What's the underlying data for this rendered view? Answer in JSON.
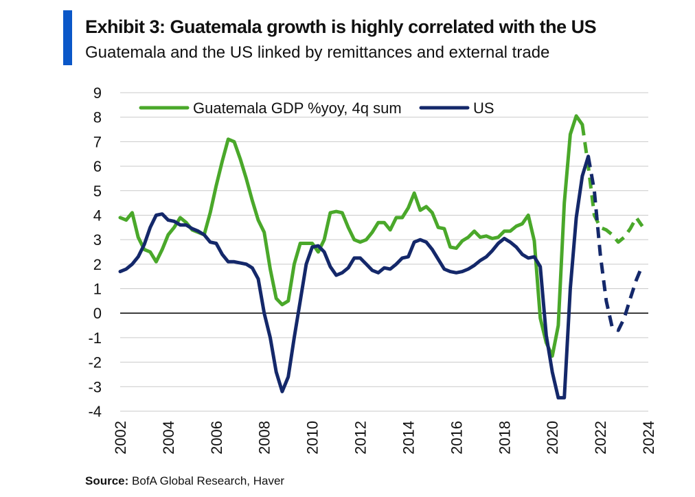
{
  "header": {
    "title": "Exhibit 3: Guatemala growth is highly correlated with the US",
    "subtitle": "Guatemala and the US linked by remittances and external trade"
  },
  "footer": {
    "source_label": "Source:",
    "source_text": "BofA Global Research, Haver"
  },
  "colors": {
    "accent": "#0a57c8",
    "guatemala": "#4aa82a",
    "us": "#14286a",
    "grid": "#c9c9c9",
    "zero_line": "#111111"
  },
  "chart_data": {
    "type": "line",
    "title": "",
    "xlabel": "",
    "ylabel": "",
    "xlim": [
      2002,
      2024
    ],
    "ylim": [
      -4,
      9
    ],
    "x_ticks": [
      "2002",
      "2004",
      "2006",
      "2008",
      "2010",
      "2012",
      "2014",
      "2016",
      "2018",
      "2020",
      "2022",
      "2024"
    ],
    "y_ticks": [
      "9",
      "8",
      "7",
      "6",
      "5",
      "4",
      "3",
      "2",
      "1",
      "0",
      "-1",
      "-2",
      "-3",
      "-4"
    ],
    "grid": true,
    "zero_line": true,
    "legend": "top-left",
    "series": [
      {
        "name": "Guatemala GDP %yoy, 4q sum",
        "color": "#4aa82a",
        "points": [
          [
            2002.0,
            3.9
          ],
          [
            2002.25,
            3.8
          ],
          [
            2002.5,
            4.1
          ],
          [
            2002.75,
            3.1
          ],
          [
            2003.0,
            2.6
          ],
          [
            2003.25,
            2.5
          ],
          [
            2003.5,
            2.1
          ],
          [
            2003.75,
            2.6
          ],
          [
            2004.0,
            3.2
          ],
          [
            2004.25,
            3.5
          ],
          [
            2004.5,
            3.9
          ],
          [
            2004.75,
            3.7
          ],
          [
            2005.0,
            3.4
          ],
          [
            2005.25,
            3.3
          ],
          [
            2005.5,
            3.2
          ],
          [
            2005.75,
            4.1
          ],
          [
            2006.0,
            5.2
          ],
          [
            2006.25,
            6.2
          ],
          [
            2006.5,
            7.1
          ],
          [
            2006.75,
            7.0
          ],
          [
            2007.0,
            6.3
          ],
          [
            2007.25,
            5.5
          ],
          [
            2007.5,
            4.6
          ],
          [
            2007.75,
            3.8
          ],
          [
            2008.0,
            3.3
          ],
          [
            2008.25,
            1.8
          ],
          [
            2008.5,
            0.6
          ],
          [
            2008.75,
            0.35
          ],
          [
            2009.0,
            0.5
          ],
          [
            2009.25,
            2.0
          ],
          [
            2009.5,
            2.85
          ],
          [
            2009.75,
            2.85
          ],
          [
            2010.0,
            2.85
          ],
          [
            2010.25,
            2.5
          ],
          [
            2010.5,
            3.0
          ],
          [
            2010.75,
            4.1
          ],
          [
            2011.0,
            4.15
          ],
          [
            2011.25,
            4.1
          ],
          [
            2011.5,
            3.5
          ],
          [
            2011.75,
            3.0
          ],
          [
            2012.0,
            2.9
          ],
          [
            2012.25,
            3.0
          ],
          [
            2012.5,
            3.3
          ],
          [
            2012.75,
            3.7
          ],
          [
            2013.0,
            3.7
          ],
          [
            2013.25,
            3.4
          ],
          [
            2013.5,
            3.9
          ],
          [
            2013.75,
            3.9
          ],
          [
            2014.0,
            4.3
          ],
          [
            2014.25,
            4.9
          ],
          [
            2014.5,
            4.2
          ],
          [
            2014.75,
            4.35
          ],
          [
            2015.0,
            4.1
          ],
          [
            2015.25,
            3.5
          ],
          [
            2015.5,
            3.45
          ],
          [
            2015.75,
            2.7
          ],
          [
            2016.0,
            2.65
          ],
          [
            2016.25,
            2.95
          ],
          [
            2016.5,
            3.1
          ],
          [
            2016.75,
            3.35
          ],
          [
            2017.0,
            3.1
          ],
          [
            2017.25,
            3.15
          ],
          [
            2017.5,
            3.05
          ],
          [
            2017.75,
            3.1
          ],
          [
            2018.0,
            3.35
          ],
          [
            2018.25,
            3.35
          ],
          [
            2018.5,
            3.55
          ],
          [
            2018.75,
            3.65
          ],
          [
            2019.0,
            4.0
          ],
          [
            2019.25,
            2.95
          ],
          [
            2019.5,
            -0.2
          ],
          [
            2019.75,
            -1.2
          ],
          [
            2020.0,
            -1.75
          ],
          [
            2020.25,
            -0.5
          ],
          [
            2020.5,
            4.5
          ],
          [
            2020.75,
            7.3
          ],
          [
            2021.0,
            8.05
          ],
          [
            2021.25,
            7.7
          ],
          [
            2021.5,
            6.0
          ],
          [
            2021.75,
            4.0
          ],
          [
            2022.0,
            3.5
          ],
          [
            2022.25,
            3.4
          ],
          [
            2022.5,
            3.2
          ],
          [
            2022.75,
            2.9
          ],
          [
            2023.0,
            3.1
          ],
          [
            2023.25,
            3.45
          ],
          [
            2023.5,
            3.9
          ],
          [
            2023.75,
            3.55
          ]
        ],
        "dashed_from": 2021.25
      },
      {
        "name": "US",
        "color": "#14286a",
        "points": [
          [
            2002.0,
            1.7
          ],
          [
            2002.25,
            1.8
          ],
          [
            2002.5,
            2.0
          ],
          [
            2002.75,
            2.3
          ],
          [
            2003.0,
            2.8
          ],
          [
            2003.25,
            3.5
          ],
          [
            2003.5,
            4.0
          ],
          [
            2003.75,
            4.05
          ],
          [
            2004.0,
            3.8
          ],
          [
            2004.25,
            3.75
          ],
          [
            2004.5,
            3.6
          ],
          [
            2004.75,
            3.6
          ],
          [
            2005.0,
            3.45
          ],
          [
            2005.25,
            3.35
          ],
          [
            2005.5,
            3.2
          ],
          [
            2005.75,
            2.9
          ],
          [
            2006.0,
            2.85
          ],
          [
            2006.25,
            2.4
          ],
          [
            2006.5,
            2.1
          ],
          [
            2006.75,
            2.1
          ],
          [
            2007.0,
            2.05
          ],
          [
            2007.25,
            2.0
          ],
          [
            2007.5,
            1.85
          ],
          [
            2007.75,
            1.4
          ],
          [
            2008.0,
            0.0
          ],
          [
            2008.25,
            -1.0
          ],
          [
            2008.5,
            -2.4
          ],
          [
            2008.75,
            -3.2
          ],
          [
            2009.0,
            -2.6
          ],
          [
            2009.25,
            -1.0
          ],
          [
            2009.5,
            0.5
          ],
          [
            2009.75,
            2.0
          ],
          [
            2010.0,
            2.7
          ],
          [
            2010.25,
            2.75
          ],
          [
            2010.5,
            2.5
          ],
          [
            2010.75,
            1.9
          ],
          [
            2011.0,
            1.55
          ],
          [
            2011.25,
            1.65
          ],
          [
            2011.5,
            1.85
          ],
          [
            2011.75,
            2.25
          ],
          [
            2012.0,
            2.25
          ],
          [
            2012.25,
            2.0
          ],
          [
            2012.5,
            1.75
          ],
          [
            2012.75,
            1.65
          ],
          [
            2013.0,
            1.85
          ],
          [
            2013.25,
            1.8
          ],
          [
            2013.5,
            2.0
          ],
          [
            2013.75,
            2.25
          ],
          [
            2014.0,
            2.3
          ],
          [
            2014.25,
            2.9
          ],
          [
            2014.5,
            3.0
          ],
          [
            2014.75,
            2.9
          ],
          [
            2015.0,
            2.6
          ],
          [
            2015.25,
            2.2
          ],
          [
            2015.5,
            1.8
          ],
          [
            2015.75,
            1.7
          ],
          [
            2016.0,
            1.65
          ],
          [
            2016.25,
            1.7
          ],
          [
            2016.5,
            1.8
          ],
          [
            2016.75,
            1.95
          ],
          [
            2017.0,
            2.15
          ],
          [
            2017.25,
            2.3
          ],
          [
            2017.5,
            2.55
          ],
          [
            2017.75,
            2.85
          ],
          [
            2018.0,
            3.05
          ],
          [
            2018.25,
            2.9
          ],
          [
            2018.5,
            2.7
          ],
          [
            2018.75,
            2.4
          ],
          [
            2019.0,
            2.25
          ],
          [
            2019.25,
            2.3
          ],
          [
            2019.5,
            1.9
          ],
          [
            2019.75,
            -0.9
          ],
          [
            2020.0,
            -2.4
          ],
          [
            2020.25,
            -3.45
          ],
          [
            2020.5,
            -3.45
          ],
          [
            2020.75,
            1.0
          ],
          [
            2021.0,
            3.9
          ],
          [
            2021.25,
            5.6
          ],
          [
            2021.5,
            6.4
          ],
          [
            2021.75,
            5.0
          ],
          [
            2022.0,
            2.4
          ],
          [
            2022.25,
            0.5
          ],
          [
            2022.5,
            -0.6
          ],
          [
            2022.75,
            -0.7
          ],
          [
            2023.0,
            -0.2
          ],
          [
            2023.25,
            0.6
          ],
          [
            2023.5,
            1.35
          ],
          [
            2023.75,
            1.95
          ]
        ],
        "dashed_from": 2021.5
      }
    ]
  }
}
